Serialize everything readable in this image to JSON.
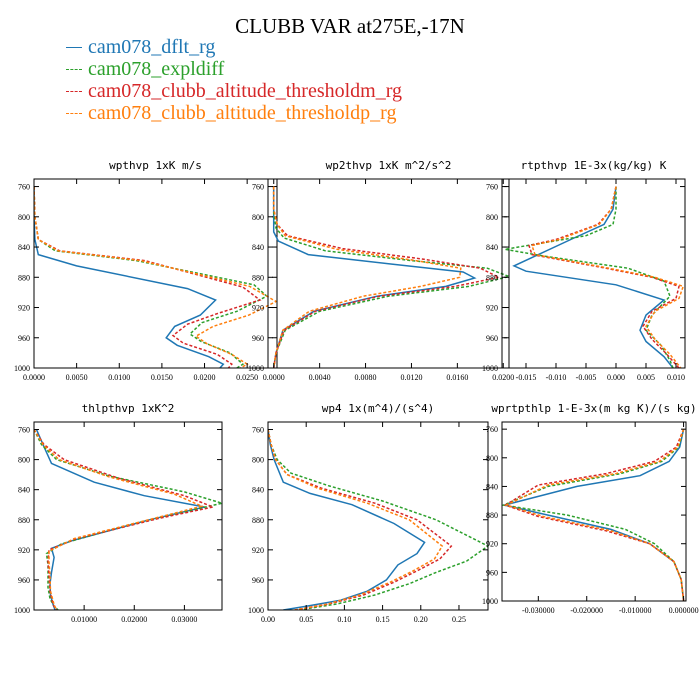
{
  "title": "CLUBB VAR at275E,-17N",
  "legend": [
    {
      "label": "cam078_dflt_rg",
      "color": "#1f77b4",
      "dash": false
    },
    {
      "label": "cam078_expldiff",
      "color": "#2ca02c",
      "dash": true
    },
    {
      "label": "cam078_clubb_altitude_thresholdm_rg",
      "color": "#d62728",
      "dash": true
    },
    {
      "label": "cam078_clubb_altitude_thresholdp_rg",
      "color": "#ff7f0e",
      "dash": true
    }
  ],
  "chart_data": [
    {
      "type": "line",
      "title": "wpthvp  1xK m/s",
      "xlim": [
        0,
        0.0285
      ],
      "ylim": [
        1000,
        750
      ],
      "xticks": [
        0.0,
        0.005,
        0.01,
        0.015,
        0.02,
        0.025
      ],
      "xticklabels": [
        "0.0000",
        "0.0050",
        "0.0100",
        "0.0150",
        "0.0200",
        "0.0250"
      ],
      "yticks": [
        760,
        800,
        840,
        880,
        920,
        960,
        1000
      ],
      "series": [
        {
          "color": "#1f77b4",
          "dash": false,
          "x": [
            0,
            0,
            0.0001,
            0.0005,
            0.005,
            0.018,
            0.0213,
            0.0195,
            0.0165,
            0.0155,
            0.0168,
            0.0205,
            0.0222,
            0.0218
          ],
          "y": [
            760,
            800,
            830,
            850,
            865,
            895,
            910,
            930,
            945,
            960,
            970,
            985,
            995,
            1000
          ]
        },
        {
          "color": "#2ca02c",
          "dash": true,
          "x": [
            0,
            0.0001,
            0.0005,
            0.0025,
            0.012,
            0.0258,
            0.0273,
            0.0238,
            0.0197,
            0.0183,
            0.0196,
            0.023,
            0.0245,
            0.0238
          ],
          "y": [
            760,
            800,
            830,
            845,
            858,
            890,
            905,
            925,
            940,
            955,
            965,
            980,
            995,
            1000
          ]
        },
        {
          "color": "#d62728",
          "dash": true,
          "x": [
            0,
            0.0001,
            0.0005,
            0.003,
            0.013,
            0.0245,
            0.0265,
            0.0215,
            0.018,
            0.0163,
            0.0175,
            0.0215,
            0.0232,
            0.0228
          ],
          "y": [
            760,
            800,
            830,
            845,
            858,
            893,
            910,
            928,
            942,
            957,
            967,
            982,
            995,
            1000
          ]
        },
        {
          "color": "#ff7f0e",
          "dash": true,
          "x": [
            0,
            0.0001,
            0.0005,
            0.0028,
            0.0125,
            0.0253,
            0.0284,
            0.0252,
            0.021,
            0.019,
            0.0203,
            0.0232,
            0.025,
            0.0242
          ],
          "y": [
            760,
            800,
            830,
            845,
            858,
            892,
            912,
            930,
            945,
            958,
            968,
            982,
            995,
            1000
          ]
        }
      ]
    },
    {
      "type": "line",
      "title": "wp2thvp  1xK m^2/s^2",
      "xlim": [
        -0.0005,
        0.0205
      ],
      "ylim": [
        1000,
        750
      ],
      "xticks": [
        0.0,
        0.004,
        0.008,
        0.012,
        0.016,
        0.02
      ],
      "xticklabels": [
        "0.0000",
        "0.0040",
        "0.0080",
        "0.0120",
        "0.0160",
        "0.0200"
      ],
      "yticks": [
        760,
        800,
        840,
        880,
        920,
        960,
        1000
      ],
      "series": [
        {
          "color": "#1f77b4",
          "dash": false,
          "x": [
            0,
            0,
            0,
            0.0004,
            0.003,
            0.01,
            0.0165,
            0.0175,
            0.015,
            0.009,
            0.0035,
            0.0008,
            0.0002,
            0
          ],
          "y": [
            760,
            800,
            820,
            832,
            850,
            862,
            873,
            881,
            892,
            905,
            925,
            950,
            980,
            1000
          ]
        },
        {
          "color": "#2ca02c",
          "dash": true,
          "x": [
            0,
            0,
            0.0002,
            0.0009,
            0.0045,
            0.012,
            0.0186,
            0.0205,
            0.017,
            0.01,
            0.004,
            0.001,
            0.0002,
            0
          ],
          "y": [
            760,
            795,
            815,
            828,
            845,
            858,
            868,
            879,
            892,
            905,
            925,
            950,
            980,
            1000
          ]
        },
        {
          "color": "#d62728",
          "dash": true,
          "x": [
            0,
            0,
            0.0003,
            0.0012,
            0.006,
            0.013,
            0.018,
            0.0196,
            0.0158,
            0.0092,
            0.0036,
            0.0009,
            0.0002,
            0
          ],
          "y": [
            760,
            790,
            810,
            825,
            842,
            856,
            868,
            880,
            892,
            905,
            925,
            950,
            980,
            1000
          ]
        },
        {
          "color": "#ff7f0e",
          "dash": true,
          "x": [
            0,
            0,
            0.0003,
            0.001,
            0.0055,
            0.012,
            0.0163,
            0.0162,
            0.0128,
            0.0078,
            0.0031,
            0.0008,
            0.0002,
            0
          ],
          "y": [
            760,
            790,
            810,
            825,
            843,
            857,
            868,
            880,
            892,
            905,
            925,
            950,
            980,
            1000
          ]
        }
      ]
    },
    {
      "type": "line",
      "title": "rtpthvp  1E-3x(kg/kg) K",
      "xlim": [
        -0.019,
        0.0115
      ],
      "ylim": [
        1000,
        750
      ],
      "xticks": [
        -0.015,
        -0.01,
        -0.005,
        0.0,
        0.005,
        0.01
      ],
      "xticklabels": [
        "-0.015",
        "-0.010",
        "-0.005",
        "0.000",
        "0.005",
        "0.010"
      ],
      "yticks": [
        760,
        800,
        840,
        880,
        920,
        960,
        1000
      ],
      "series": [
        {
          "color": "#1f77b4",
          "dash": false,
          "x": [
            0,
            -0.0005,
            -0.002,
            -0.007,
            -0.017,
            -0.015,
            0.0,
            0.008,
            0.005,
            0.004,
            0.005,
            0.008,
            0.0095
          ],
          "y": [
            760,
            790,
            810,
            828,
            865,
            872,
            890,
            910,
            930,
            950,
            965,
            985,
            1000
          ]
        },
        {
          "color": "#2ca02c",
          "dash": true,
          "x": [
            0,
            0,
            -0.0005,
            -0.005,
            -0.0185,
            -0.012,
            0.002,
            0.008,
            0.009,
            0.006,
            0.005,
            0.0075,
            0.009,
            0.0095
          ],
          "y": [
            760,
            790,
            810,
            825,
            843,
            852,
            868,
            885,
            905,
            930,
            950,
            970,
            990,
            1000
          ]
        },
        {
          "color": "#d62728",
          "dash": true,
          "x": [
            0,
            -0.0008,
            -0.003,
            -0.01,
            -0.0145,
            -0.014,
            -0.003,
            0.006,
            0.0105,
            0.01,
            0.006,
            0.0045,
            0.006,
            0.0085,
            0.0105
          ],
          "y": [
            760,
            790,
            810,
            830,
            838,
            850,
            866,
            880,
            892,
            908,
            925,
            945,
            962,
            982,
            1000
          ]
        },
        {
          "color": "#ff7f0e",
          "dash": true,
          "x": [
            0,
            -0.0008,
            -0.0028,
            -0.0095,
            -0.014,
            -0.0135,
            -0.0025,
            0.0065,
            0.0112,
            0.0105,
            0.0065,
            0.005,
            0.0065,
            0.009,
            0.0108
          ],
          "y": [
            760,
            790,
            810,
            830,
            838,
            850,
            866,
            880,
            892,
            908,
            925,
            945,
            962,
            982,
            1000
          ]
        }
      ]
    },
    {
      "type": "line",
      "title": "thlpthvp  1xK^2",
      "xlim": [
        0,
        0.0375
      ],
      "ylim": [
        1000,
        750
      ],
      "xticks": [
        0.01,
        0.02,
        0.03
      ],
      "xticklabels": [
        "0.01000",
        "0.02000",
        "0.03000"
      ],
      "yticks": [
        760,
        800,
        840,
        880,
        920,
        960,
        1000
      ],
      "series": [
        {
          "color": "#1f77b4",
          "dash": false,
          "x": [
            0.0005,
            0.0018,
            0.0035,
            0.012,
            0.022,
            0.034,
            0.023,
            0.0075,
            0.0035,
            0.004,
            0.0035,
            0.0032,
            0.0033,
            0.0038,
            0.0042
          ],
          "y": [
            760,
            780,
            805,
            830,
            848,
            863,
            880,
            908,
            918,
            930,
            950,
            965,
            980,
            993,
            1000
          ]
        },
        {
          "color": "#2ca02c",
          "dash": true,
          "x": [
            0,
            0.0015,
            0.0045,
            0.015,
            0.03,
            0.0375,
            0.02,
            0.0055,
            0.0025,
            0.0028,
            0.0028,
            0.0028,
            0.0032,
            0.004,
            0.0048
          ],
          "y": [
            760,
            780,
            800,
            822,
            843,
            858,
            885,
            912,
            925,
            940,
            955,
            970,
            985,
            995,
            1000
          ]
        },
        {
          "color": "#d62728",
          "dash": true,
          "x": [
            0,
            0.002,
            0.006,
            0.017,
            0.03,
            0.0357,
            0.025,
            0.0085,
            0.003,
            0.0028,
            0.003,
            0.0032,
            0.0038,
            0.0045
          ],
          "y": [
            760,
            780,
            800,
            825,
            848,
            863,
            878,
            905,
            920,
            935,
            955,
            975,
            993,
            1000
          ]
        },
        {
          "color": "#ff7f0e",
          "dash": true,
          "x": [
            0,
            0.0018,
            0.005,
            0.015,
            0.028,
            0.0335,
            0.024,
            0.008,
            0.003,
            0.003,
            0.0032,
            0.0033,
            0.004,
            0.0045
          ],
          "y": [
            760,
            780,
            800,
            823,
            846,
            862,
            878,
            905,
            922,
            936,
            955,
            975,
            993,
            1000
          ]
        }
      ]
    },
    {
      "type": "line",
      "title": "wp4  1x(m^4)/(s^4)",
      "xlim": [
        0,
        0.288
      ],
      "ylim": [
        1000,
        750
      ],
      "xticks": [
        0.0,
        0.05,
        0.1,
        0.15,
        0.2,
        0.25
      ],
      "xticklabels": [
        "0.00",
        "0.05",
        "0.10",
        "0.15",
        "0.20",
        "0.25"
      ],
      "yticks": [
        760,
        800,
        840,
        880,
        920,
        960,
        1000
      ],
      "series": [
        {
          "color": "#1f77b4",
          "dash": false,
          "x": [
            0.0,
            0.003,
            0.008,
            0.02,
            0.055,
            0.11,
            0.165,
            0.205,
            0.195,
            0.17,
            0.155,
            0.13,
            0.095,
            0.05,
            0.02
          ],
          "y": [
            760,
            780,
            800,
            830,
            845,
            860,
            885,
            910,
            925,
            940,
            960,
            975,
            987,
            995,
            1000
          ]
        },
        {
          "color": "#2ca02c",
          "dash": true,
          "x": [
            0.0,
            0.004,
            0.012,
            0.03,
            0.08,
            0.15,
            0.22,
            0.288,
            0.26,
            0.22,
            0.185,
            0.14,
            0.09,
            0.04
          ],
          "y": [
            760,
            780,
            800,
            818,
            835,
            855,
            880,
            915,
            935,
            950,
            965,
            980,
            992,
            1000
          ]
        },
        {
          "color": "#d62728",
          "dash": true,
          "x": [
            0.0,
            0.004,
            0.01,
            0.025,
            0.07,
            0.14,
            0.195,
            0.24,
            0.225,
            0.195,
            0.165,
            0.125,
            0.08,
            0.035
          ],
          "y": [
            760,
            780,
            800,
            820,
            838,
            858,
            880,
            915,
            932,
            948,
            963,
            980,
            992,
            1000
          ]
        },
        {
          "color": "#ff7f0e",
          "dash": true,
          "x": [
            0.0,
            0.004,
            0.01,
            0.025,
            0.065,
            0.13,
            0.185,
            0.228,
            0.218,
            0.19,
            0.16,
            0.12,
            0.078,
            0.035
          ],
          "y": [
            760,
            780,
            800,
            820,
            838,
            858,
            880,
            915,
            932,
            948,
            963,
            980,
            992,
            1000
          ]
        }
      ]
    },
    {
      "type": "line",
      "title": "wprtpthlp  1-E-3x(m kg K)/(s kg)",
      "xlim": [
        -0.0375,
        0.0005
      ],
      "ylim": [
        1000,
        750
      ],
      "xticks": [
        -0.03,
        -0.02,
        -0.01,
        0.0
      ],
      "xticklabels": [
        "-0.030000",
        "-0.020000",
        "-0.010000",
        "0.000000"
      ],
      "yticks": [
        760,
        800,
        840,
        880,
        920,
        960,
        1000
      ],
      "series": [
        {
          "color": "#1f77b4",
          "dash": false,
          "x": [
            0,
            -0.0008,
            -0.003,
            -0.009,
            -0.022,
            -0.037,
            -0.028,
            -0.015,
            -0.007,
            -0.002,
            -0.0005,
            0
          ],
          "y": [
            760,
            785,
            805,
            825,
            840,
            866,
            880,
            900,
            920,
            945,
            970,
            1000
          ]
        },
        {
          "color": "#2ca02c",
          "dash": true,
          "x": [
            0,
            -0.001,
            -0.0045,
            -0.013,
            -0.028,
            -0.0372,
            -0.024,
            -0.012,
            -0.006,
            -0.002,
            -0.0005,
            0
          ],
          "y": [
            760,
            785,
            805,
            822,
            840,
            866,
            880,
            900,
            920,
            945,
            970,
            1000
          ]
        },
        {
          "color": "#d62728",
          "dash": true,
          "x": [
            0,
            -0.0015,
            -0.006,
            -0.016,
            -0.03,
            -0.0368,
            -0.03,
            -0.016,
            -0.007,
            -0.002,
            -0.0005,
            0
          ],
          "y": [
            760,
            785,
            805,
            822,
            838,
            866,
            882,
            902,
            920,
            945,
            970,
            1000
          ]
        },
        {
          "color": "#ff7f0e",
          "dash": true,
          "x": [
            0,
            -0.0012,
            -0.005,
            -0.014,
            -0.028,
            -0.0366,
            -0.029,
            -0.015,
            -0.007,
            -0.002,
            -0.0005,
            0
          ],
          "y": [
            760,
            785,
            805,
            822,
            838,
            866,
            882,
            902,
            920,
            945,
            970,
            1000
          ]
        }
      ]
    }
  ]
}
